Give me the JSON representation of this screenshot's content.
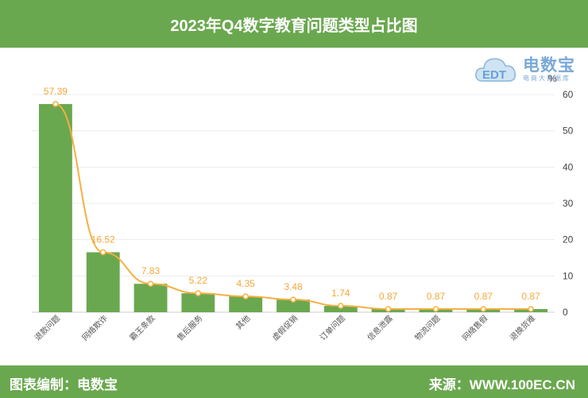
{
  "header": {
    "title": "2023年Q4数字教育问题类型占比图"
  },
  "footer": {
    "left": "图表编制：电数宝",
    "right": "来源：WWW.100EC.CN"
  },
  "logo": {
    "brand": "电数宝",
    "sub": "电商大数据库",
    "mark": "EDT"
  },
  "colors": {
    "bar": "#6aa84f",
    "line": "#f4b042",
    "header": "#6aa84f",
    "label": "#f4a83c"
  },
  "chart_data": {
    "type": "bar",
    "unit_label": "%",
    "categories": [
      "退款问题",
      "网络欺诈",
      "霸王条款",
      "售后服务",
      "其他",
      "虚假促销",
      "订单问题",
      "信息泄露",
      "物流问题",
      "网络售假",
      "退换货难"
    ],
    "values": [
      57.39,
      16.52,
      7.83,
      5.22,
      4.35,
      3.48,
      1.74,
      0.87,
      0.87,
      0.87,
      0.87
    ],
    "value_labels": [
      "57.39",
      "16.52",
      "7.83",
      "5.22",
      "4.35",
      "3.48",
      "1.74",
      "0.87",
      "0.87",
      "0.87",
      "0.87"
    ],
    "ylim": [
      0,
      60
    ],
    "yticks": [
      0,
      10,
      20,
      30,
      40,
      50,
      60
    ],
    "overlay_line": true,
    "grid": true
  }
}
